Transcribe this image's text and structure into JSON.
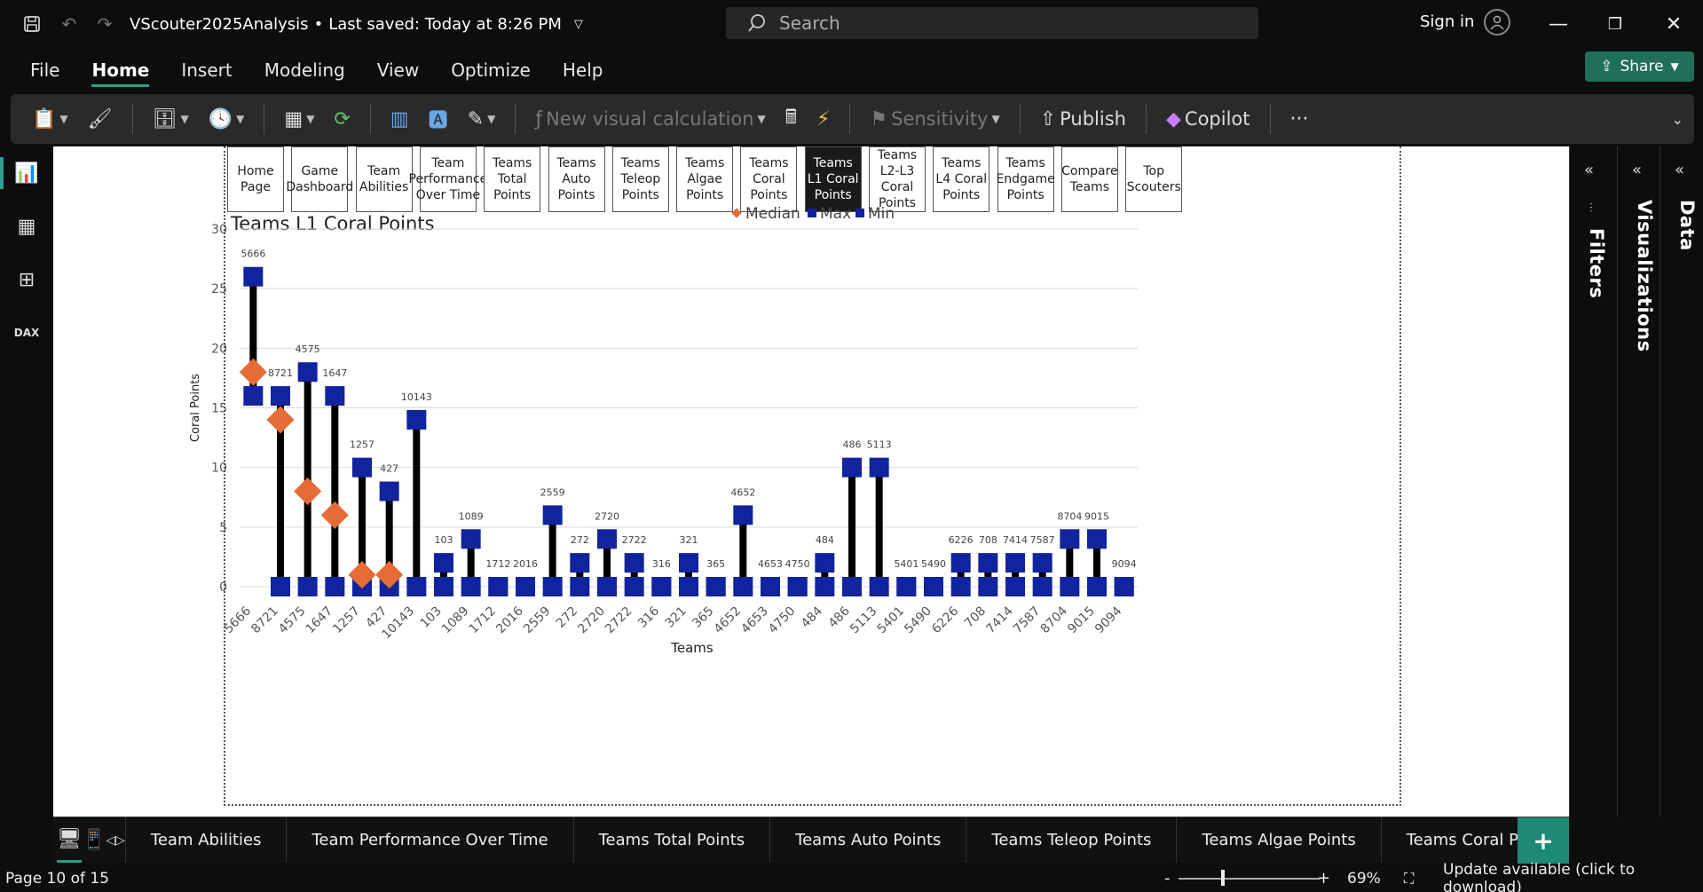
{
  "titlebar": {
    "doc_title": "VScouter2025Analysis",
    "saved_status": "Last saved: Today at 8:26 PM",
    "search_placeholder": "Search",
    "sign_in": "Sign in"
  },
  "menu": {
    "items": [
      "File",
      "Home",
      "Insert",
      "Modeling",
      "View",
      "Optimize",
      "Help"
    ],
    "active": "Home",
    "share_label": "Share"
  },
  "ribbon": {
    "new_visual_calc": "New visual calculation",
    "sensitivity": "Sensitivity",
    "publish": "Publish",
    "copilot": "Copilot",
    "more": "···"
  },
  "report_nav": {
    "buttons": [
      "Home Page",
      "Game Dashboard",
      "Team Abilities",
      "Team Performance Over Time",
      "Teams Total Points",
      "Teams Auto Points",
      "Teams Teleop Points",
      "Teams Algae Points",
      "Teams Coral Points",
      "Teams L1 Coral Points",
      "Teams L2-L3 Coral Points",
      "Teams L4 Coral Points",
      "Teams Endgame Points",
      "Compare Teams",
      "Top Scouters"
    ],
    "active_index": 9
  },
  "panes": {
    "filters": "Filters",
    "visualizations": "Visualizations",
    "data": "Data"
  },
  "chart_data": {
    "type": "scatter",
    "title": "Teams L1 Coral Points",
    "xlabel": "Teams",
    "ylabel": "Coral Points",
    "ylim": [
      0,
      30
    ],
    "yticks": [
      0,
      5,
      10,
      15,
      20,
      25,
      30
    ],
    "grid": true,
    "legend_position": "top-center",
    "categories": [
      "5666",
      "8721",
      "4575",
      "1647",
      "1257",
      "427",
      "10143",
      "103",
      "1089",
      "1712",
      "2016",
      "2559",
      "272",
      "2720",
      "2722",
      "316",
      "321",
      "365",
      "4652",
      "4653",
      "4750",
      "484",
      "486",
      "5113",
      "5401",
      "5490",
      "6226",
      "708",
      "7414",
      "7587",
      "8704",
      "9015",
      "9094"
    ],
    "series": [
      {
        "name": "Median",
        "marker": "diamond",
        "color": "#E66C37",
        "values": [
          18,
          14,
          8,
          6,
          1,
          1,
          0,
          0,
          0,
          0,
          0,
          0,
          0,
          0,
          0,
          0,
          0,
          0,
          0,
          0,
          0,
          0,
          0,
          0,
          0,
          0,
          0,
          0,
          0,
          0,
          0,
          0,
          0
        ]
      },
      {
        "name": "Max",
        "marker": "square",
        "color": "#12239E",
        "values": [
          26,
          16,
          18,
          16,
          10,
          8,
          14,
          2,
          4,
          0,
          0,
          6,
          2,
          4,
          2,
          0,
          2,
          0,
          6,
          0,
          0,
          2,
          10,
          10,
          0,
          0,
          2,
          2,
          2,
          2,
          4,
          4,
          0
        ]
      },
      {
        "name": "Min",
        "marker": "square",
        "color": "#12239E",
        "values": [
          16,
          0,
          0,
          0,
          0,
          0,
          0,
          0,
          0,
          0,
          0,
          0,
          0,
          0,
          0,
          0,
          0,
          0,
          0,
          0,
          0,
          0,
          0,
          0,
          0,
          0,
          0,
          0,
          0,
          0,
          0,
          0,
          0
        ]
      }
    ],
    "data_labels": [
      "5666",
      "8721",
      "4575",
      "1647",
      "1257",
      "427",
      "10143",
      "103",
      "1089",
      "1712",
      "2016",
      "2559",
      "272",
      "2720",
      "2722",
      "316",
      "321",
      "365",
      "4652",
      "4653",
      "4750",
      "484",
      "486",
      "5113",
      "5401",
      "5490",
      "6226",
      "708",
      "7414",
      "7587",
      "8704",
      "9015",
      "9094"
    ]
  },
  "page_tabs": {
    "tabs": [
      "Team Abilities",
      "Team Performance Over Time",
      "Teams Total Points",
      "Teams Auto Points",
      "Teams Teleop Points",
      "Teams Algae Points",
      "Teams Coral Points"
    ],
    "add_label": "+"
  },
  "status": {
    "page_info": "Page 10 of 15",
    "zoom": "69%",
    "update": "Update available (click to download)"
  }
}
